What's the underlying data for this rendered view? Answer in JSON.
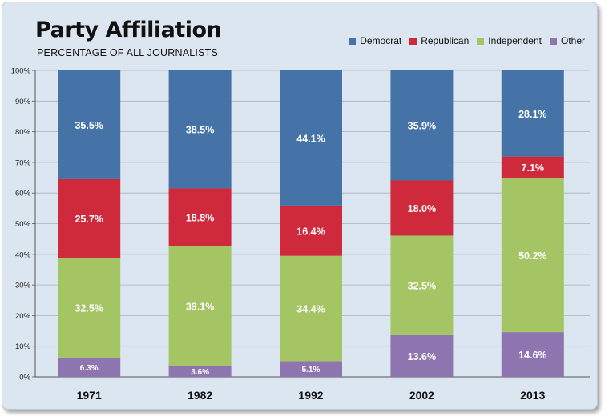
{
  "chart_data": {
    "type": "stacked-bar",
    "title": "Party Affiliation",
    "subtitle": "PERCENTAGE OF ALL JOURNALISTS",
    "categories": [
      "1971",
      "1982",
      "1992",
      "2002",
      "2013"
    ],
    "ylim": [
      0,
      100
    ],
    "yticks": [
      {
        "value": 0,
        "label": "0%"
      },
      {
        "value": 10,
        "label": "10%"
      },
      {
        "value": 20,
        "label": "20%"
      },
      {
        "value": 30,
        "label": "30%"
      },
      {
        "value": 40,
        "label": "40%"
      },
      {
        "value": 50,
        "label": "50%"
      },
      {
        "value": 60,
        "label": "60%"
      },
      {
        "value": 70,
        "label": "70%"
      },
      {
        "value": 80,
        "label": "80%"
      },
      {
        "value": 90,
        "label": "90%"
      },
      {
        "value": 100,
        "label": "100%"
      }
    ],
    "grid": true,
    "legend_position": "top-right",
    "stack_order": [
      "Other",
      "Independent",
      "Republican",
      "Democrat"
    ],
    "series": [
      {
        "name": "Democrat",
        "color": "#4572a7",
        "values": [
          35.5,
          38.5,
          44.1,
          35.9,
          28.1
        ],
        "labels": [
          "35.5%",
          "38.5%",
          "44.1%",
          "35.9%",
          "28.1%"
        ]
      },
      {
        "name": "Republican",
        "color": "#cf2a3c",
        "values": [
          25.7,
          18.8,
          16.4,
          18.0,
          7.1
        ],
        "labels": [
          "25.7%",
          "18.8%",
          "16.4%",
          "18.0%",
          "7.1%"
        ]
      },
      {
        "name": "Independent",
        "color": "#a5c463",
        "values": [
          32.5,
          39.1,
          34.4,
          32.5,
          50.2
        ],
        "labels": [
          "32.5%",
          "39.1%",
          "34.4%",
          "32.5%",
          "50.2%"
        ]
      },
      {
        "name": "Other",
        "color": "#8f75b0",
        "values": [
          6.3,
          3.6,
          5.1,
          13.6,
          14.6
        ],
        "labels": [
          "6.3%",
          "3.6%",
          "5.1%",
          "13.6%",
          "14.6%"
        ]
      }
    ]
  }
}
